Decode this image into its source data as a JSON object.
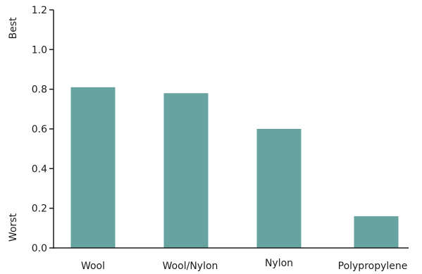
{
  "chart_data": {
    "type": "bar",
    "title": "",
    "xlabel": "",
    "ylabel_top": "Best",
    "ylabel_bottom": "Worst",
    "categories": [
      "Wool",
      "Wool/Nylon",
      "Nylon",
      "Polypropylene"
    ],
    "values": [
      0.81,
      0.78,
      0.6,
      0.16
    ],
    "ylim": [
      0,
      1.2
    ],
    "yticks": [
      "0.0",
      "0.2",
      "0.4",
      "0.6",
      "0.8",
      "1.0",
      "1.2"
    ],
    "grid": false,
    "legend": "none",
    "bar_color": "#67a3a0",
    "axis_color": "#1a1a1a"
  }
}
